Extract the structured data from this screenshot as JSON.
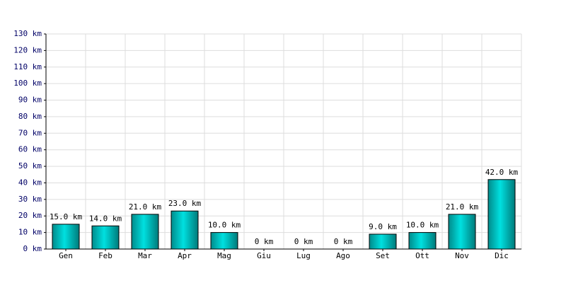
{
  "chart_data": {
    "type": "bar",
    "categories": [
      "Gen",
      "Feb",
      "Mar",
      "Apr",
      "Mag",
      "Giu",
      "Lug",
      "Ago",
      "Set",
      "Ott",
      "Nov",
      "Dic"
    ],
    "values": [
      15,
      14,
      21,
      23,
      10,
      0,
      0,
      0,
      9,
      10,
      21,
      42
    ],
    "value_labels": [
      "15.0 km",
      "14.0 km",
      "21.0 km",
      "23.0 km",
      "10.0 km",
      "0 km",
      "0 km",
      "0 km",
      "9.0 km",
      "10.0 km",
      "21.0 km",
      "42.0 km"
    ],
    "color": "#00e0e0",
    "ylim": [
      0,
      130
    ],
    "yticks": [
      {
        "value": 0,
        "label": "0 km"
      },
      {
        "value": 10,
        "label": "10 km"
      },
      {
        "value": 20,
        "label": "20 km"
      },
      {
        "value": 30,
        "label": "30 km"
      },
      {
        "value": 40,
        "label": "40 km"
      },
      {
        "value": 50,
        "label": "50 km"
      },
      {
        "value": 60,
        "label": "60 km"
      },
      {
        "value": 70,
        "label": "70 km"
      },
      {
        "value": 80,
        "label": "80 km"
      },
      {
        "value": 90,
        "label": "90 km"
      },
      {
        "value": 100,
        "label": "100 km"
      },
      {
        "value": 110,
        "label": "110 km"
      },
      {
        "value": 120,
        "label": "120 km"
      },
      {
        "value": 130,
        "label": "130 km"
      }
    ],
    "grid": true
  }
}
